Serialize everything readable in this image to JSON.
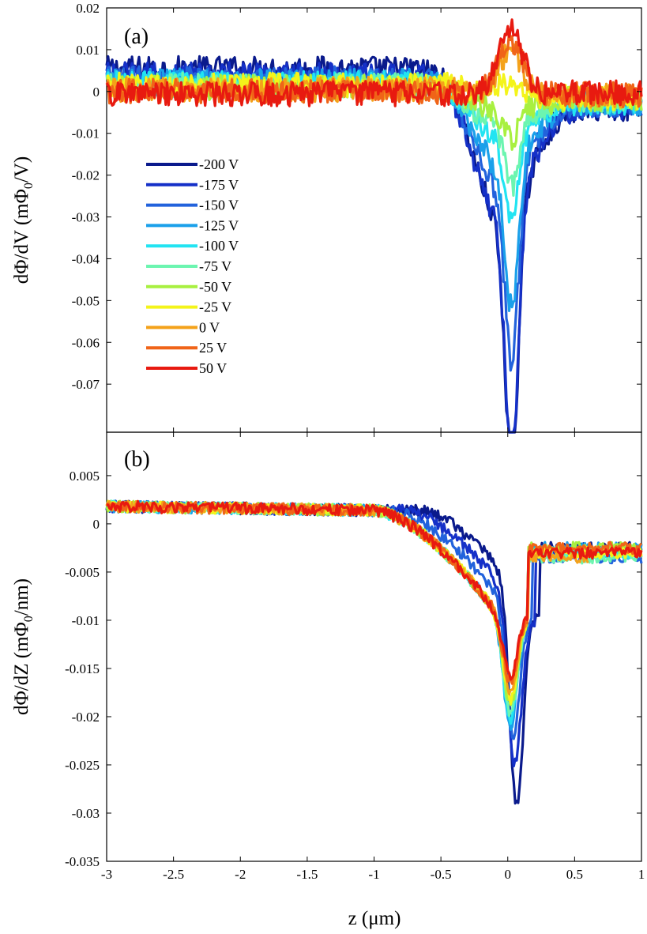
{
  "chart_data": [
    {
      "type": "line",
      "panel_label": "(a)",
      "xlabel": "",
      "ylabel": "dΦ/dV (mΦ0/V)",
      "xlim": [
        -3,
        1
      ],
      "ylim": [
        -0.0815,
        0.02
      ],
      "xticks": [
        "-3",
        "-2.5",
        "-2",
        "-1.5",
        "-1",
        "-0.5",
        "0",
        "0.5",
        "1"
      ],
      "yticks": [
        "0.02",
        "0.01",
        "0",
        "-0.01",
        "-0.02",
        "-0.03",
        "-0.04",
        "-0.05",
        "-0.06",
        "-0.07"
      ],
      "legend_position": "left-middle",
      "series": [
        {
          "name": "-200 V",
          "color": "#0a1a8c",
          "base": 0.0055,
          "dip": -0.0795,
          "peak": 0.0,
          "noise": 0.003
        },
        {
          "name": "-175 V",
          "color": "#1530c8",
          "base": 0.004,
          "dip": -0.0775,
          "peak": 0.0,
          "noise": 0.003
        },
        {
          "name": "-150 V",
          "color": "#2262dc",
          "base": 0.003,
          "dip": -0.057,
          "peak": 0.0,
          "noise": 0.003
        },
        {
          "name": "-125 V",
          "color": "#1aa0ea",
          "base": 0.0025,
          "dip": -0.0455,
          "peak": 0.0,
          "noise": 0.003
        },
        {
          "name": "-100 V",
          "color": "#22e4f2",
          "base": 0.002,
          "dip": -0.027,
          "peak": 0.0,
          "noise": 0.003
        },
        {
          "name": "-75 V",
          "color": "#6cf5b0",
          "base": 0.0015,
          "dip": -0.019,
          "peak": 0.0,
          "noise": 0.003
        },
        {
          "name": "-50 V",
          "color": "#a8f040",
          "base": 0.001,
          "dip": -0.009,
          "peak": 0.0,
          "noise": 0.003
        },
        {
          "name": "-25 V",
          "color": "#f4f41a",
          "base": 0.0015,
          "dip": 0.0,
          "peak": 0.004,
          "noise": 0.003
        },
        {
          "name": "0 V",
          "color": "#f4a21a",
          "base": 0.0005,
          "dip": 0.0,
          "peak": 0.011,
          "noise": 0.003
        },
        {
          "name": "25 V",
          "color": "#f06418",
          "base": 0.0,
          "dip": 0.0,
          "peak": 0.013,
          "noise": 0.003
        },
        {
          "name": "50 V",
          "color": "#e81a10",
          "base": -0.0005,
          "dip": 0.0,
          "peak": 0.0155,
          "noise": 0.003
        }
      ]
    },
    {
      "type": "line",
      "panel_label": "(b)",
      "xlabel": "z (μm)",
      "ylabel": "dΦ/dZ (mΦ0/nm)",
      "xlim": [
        -3,
        1
      ],
      "ylim": [
        -0.035,
        0.0095
      ],
      "xticks": [
        "-3",
        "-2.5",
        "-2",
        "-1.5",
        "-1",
        "-0.5",
        "0",
        "0.5",
        "1"
      ],
      "yticks": [
        "0.005",
        "0",
        "-0.005",
        "-0.01",
        "-0.015",
        "-0.02",
        "-0.025",
        "-0.03",
        "-0.035"
      ],
      "series": [
        {
          "name": "-200 V",
          "color": "#0a1a8c",
          "dip": -0.0335,
          "shift": 0.18,
          "noise": 0.0006
        },
        {
          "name": "-175 V",
          "color": "#1530c8",
          "dip": -0.0275,
          "shift": 0.12,
          "noise": 0.0006
        },
        {
          "name": "-150 V",
          "color": "#2262dc",
          "dip": -0.0235,
          "shift": 0.07,
          "noise": 0.0006
        },
        {
          "name": "-125 V",
          "color": "#1aa0ea",
          "dip": -0.0225,
          "shift": 0.0,
          "noise": 0.0006
        },
        {
          "name": "-100 V",
          "color": "#22e4f2",
          "dip": -0.0215,
          "shift": 0.0,
          "noise": 0.0006
        },
        {
          "name": "-75 V",
          "color": "#6cf5b0",
          "dip": -0.021,
          "shift": 0.0,
          "noise": 0.0006
        },
        {
          "name": "-50 V",
          "color": "#a8f040",
          "dip": -0.02,
          "shift": 0.0,
          "noise": 0.0006
        },
        {
          "name": "-25 V",
          "color": "#f4f41a",
          "dip": -0.0195,
          "shift": 0.0,
          "noise": 0.0006
        },
        {
          "name": "0 V",
          "color": "#f4a21a",
          "dip": -0.0185,
          "shift": 0.0,
          "noise": 0.0006
        },
        {
          "name": "25 V",
          "color": "#f06418",
          "dip": -0.0175,
          "shift": 0.0,
          "noise": 0.0006
        },
        {
          "name": "50 V",
          "color": "#e81a10",
          "dip": -0.017,
          "shift": 0.0,
          "noise": 0.0006
        }
      ]
    }
  ]
}
